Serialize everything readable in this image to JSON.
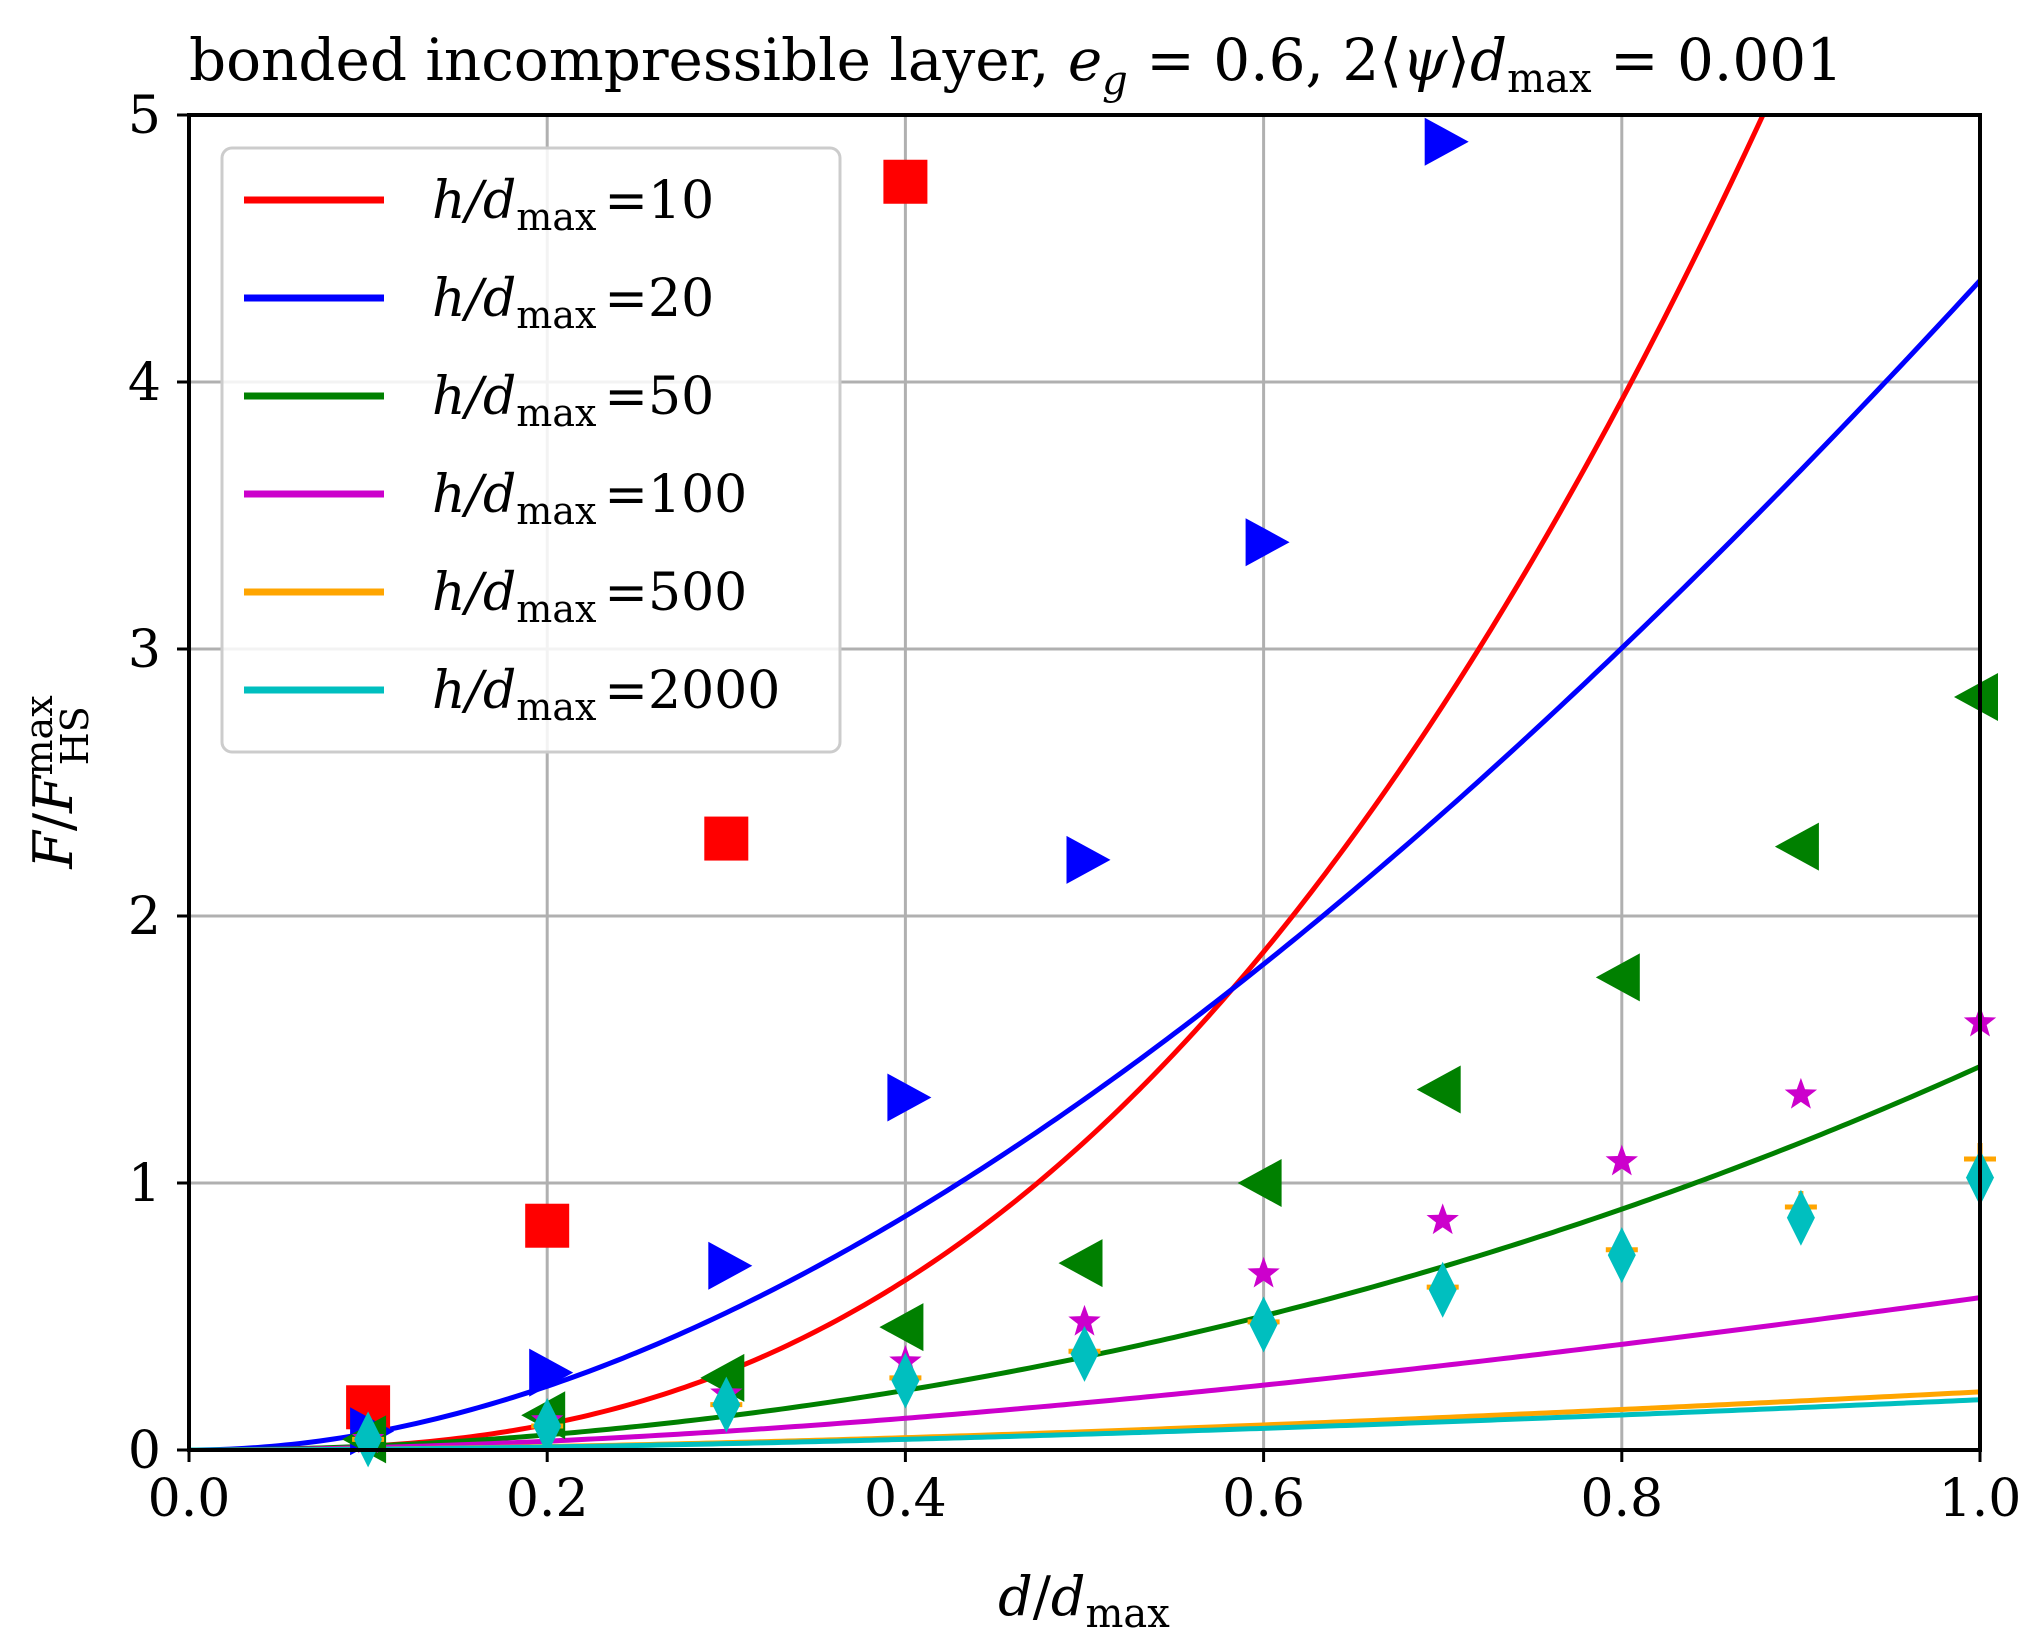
{
  "chart_data": {
    "type": "line",
    "title": "bonded incompressible layer, e_g = 0.6, 2⟨ψ⟩d_max = 0.001",
    "title_parts": {
      "lead": "bonded incompressible layer, ",
      "e": "e",
      "g": "g",
      "eq1": " = 0.6, 2⟨",
      "psi": "ψ",
      "rangle": "⟩",
      "d": "d",
      "max": "max",
      "eq2": " = 0.001"
    },
    "xlabel": "d/d_max",
    "xlabel_parts": {
      "d": "d",
      "slash": "/",
      "d2": "d",
      "max": "max"
    },
    "ylabel": "F/F_HS^max",
    "ylabel_parts": {
      "F": "F",
      "slash": "/",
      "F2": "F",
      "sup": "max",
      "sub": "HS"
    },
    "xlim": [
      0,
      1
    ],
    "ylim": [
      0,
      5
    ],
    "xticks": [
      0.0,
      0.2,
      0.4,
      0.6,
      0.8,
      1.0
    ],
    "xtick_labels": [
      "0.0",
      "0.2",
      "0.4",
      "0.6",
      "0.8",
      "1.0"
    ],
    "yticks": [
      0,
      1,
      2,
      3,
      4,
      5
    ],
    "ytick_labels": [
      "0",
      "1",
      "2",
      "3",
      "4",
      "5"
    ],
    "grid": true,
    "legend_position": "top-left",
    "legend_prefix": "h/d",
    "legend_sub": "max",
    "series": [
      {
        "name": "h/d_max =10",
        "value_label": "=10",
        "color": "#ff0000",
        "marker": "square",
        "curve": {
          "a": 10.4,
          "b": 0.5,
          "c": 0,
          "n": 2.85
        },
        "points": {
          "x": [
            0.1,
            0.2,
            0.3,
            0.4
          ],
          "y": [
            0.16,
            0.84,
            2.29,
            4.75
          ]
        }
      },
      {
        "name": "h/d_max =20",
        "value_label": "=20",
        "color": "#0000ff",
        "marker": "triangle-right",
        "curve": {
          "a": 6.57,
          "b": 0.5,
          "c": 0,
          "n": 2.0
        },
        "points": {
          "x": [
            0.1,
            0.2,
            0.3,
            0.4,
            0.5,
            0.6,
            0.7
          ],
          "y": [
            0.07,
            0.29,
            0.69,
            1.32,
            2.21,
            3.4,
            4.9
          ]
        }
      },
      {
        "name": "h/d_max =50",
        "value_label": "=50",
        "color": "#008000",
        "marker": "triangle-left",
        "curve": {
          "a": 1.47,
          "b": 0.57,
          "c": 0.5,
          "n": 2.0
        },
        "points": {
          "x": [
            0.1,
            0.2,
            0.3,
            0.4,
            0.5,
            0.6,
            0.7,
            0.8,
            0.9,
            1.0
          ],
          "y": [
            0.04,
            0.13,
            0.27,
            0.46,
            0.7,
            1.0,
            1.35,
            1.77,
            2.26,
            2.82
          ]
        }
      },
      {
        "name": "h/d_max =100",
        "value_label": "=100",
        "color": "#cc00cc",
        "marker": "star",
        "curve": {
          "a": 0.93,
          "b": 0.63,
          "c": 0,
          "n": 2.0
        },
        "points": {
          "x": [
            0.1,
            0.2,
            0.3,
            0.4,
            0.5,
            0.6,
            0.7,
            0.8,
            0.9,
            1.0
          ],
          "y": [
            0.04,
            0.11,
            0.21,
            0.33,
            0.48,
            0.66,
            0.86,
            1.08,
            1.33,
            1.6
          ]
        }
      },
      {
        "name": "h/d_max =500",
        "value_label": "=500",
        "color": "#ffa500",
        "marker": "plus",
        "curve": {
          "a": 0.37,
          "b": 0.7,
          "c": 0,
          "n": 2.0
        },
        "points": {
          "x": [
            0.1,
            0.2,
            0.3,
            0.4,
            0.5,
            0.6,
            0.7,
            0.8,
            0.9,
            1.0
          ],
          "y": [
            0.04,
            0.09,
            0.17,
            0.27,
            0.37,
            0.48,
            0.61,
            0.75,
            0.91,
            1.09
          ]
        }
      },
      {
        "name": "h/d_max =2000",
        "value_label": "=2000",
        "color": "#00bfbf",
        "marker": "thin-diamond",
        "curve": {
          "a": 0.32,
          "b": 0.7,
          "c": 0,
          "n": 2.0
        },
        "points": {
          "x": [
            0.1,
            0.2,
            0.3,
            0.4,
            0.5,
            0.6,
            0.7,
            0.8,
            0.9,
            1.0
          ],
          "y": [
            0.04,
            0.09,
            0.17,
            0.26,
            0.36,
            0.47,
            0.6,
            0.73,
            0.87,
            1.02
          ]
        }
      }
    ]
  }
}
